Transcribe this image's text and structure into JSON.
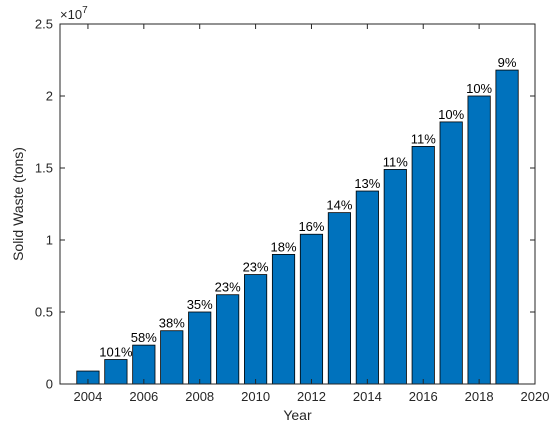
{
  "chart_data": {
    "type": "bar",
    "title": "",
    "xlabel": "Year",
    "ylabel": "Solid Waste (tons)",
    "y_multiplier_label": "×10",
    "y_multiplier_exponent": "7",
    "xlim": [
      2003,
      2020
    ],
    "ylim": [
      0,
      2.5
    ],
    "x_ticks": [
      2004,
      2006,
      2008,
      2010,
      2012,
      2014,
      2016,
      2018,
      2020
    ],
    "y_ticks": [
      0,
      0.5,
      1,
      1.5,
      2,
      2.5
    ],
    "x": [
      2004,
      2005,
      2006,
      2007,
      2008,
      2009,
      2010,
      2011,
      2012,
      2013,
      2014,
      2015,
      2016,
      2017,
      2018,
      2019
    ],
    "values": [
      0.09,
      0.17,
      0.27,
      0.37,
      0.5,
      0.62,
      0.76,
      0.9,
      1.04,
      1.19,
      1.34,
      1.49,
      1.65,
      1.82,
      2.0,
      2.18
    ],
    "value_units": "×10^7 tons",
    "data_labels": [
      "",
      "101%",
      "58%",
      "38%",
      "35%",
      "23%",
      "23%",
      "18%",
      "16%",
      "14%",
      "13%",
      "11%",
      "11%",
      "10%",
      "10%",
      "9%"
    ],
    "grid": false,
    "legend": "none",
    "bar_color": "#0072BD",
    "bar_edge_color": "#000000",
    "axis_color": "#262626"
  }
}
